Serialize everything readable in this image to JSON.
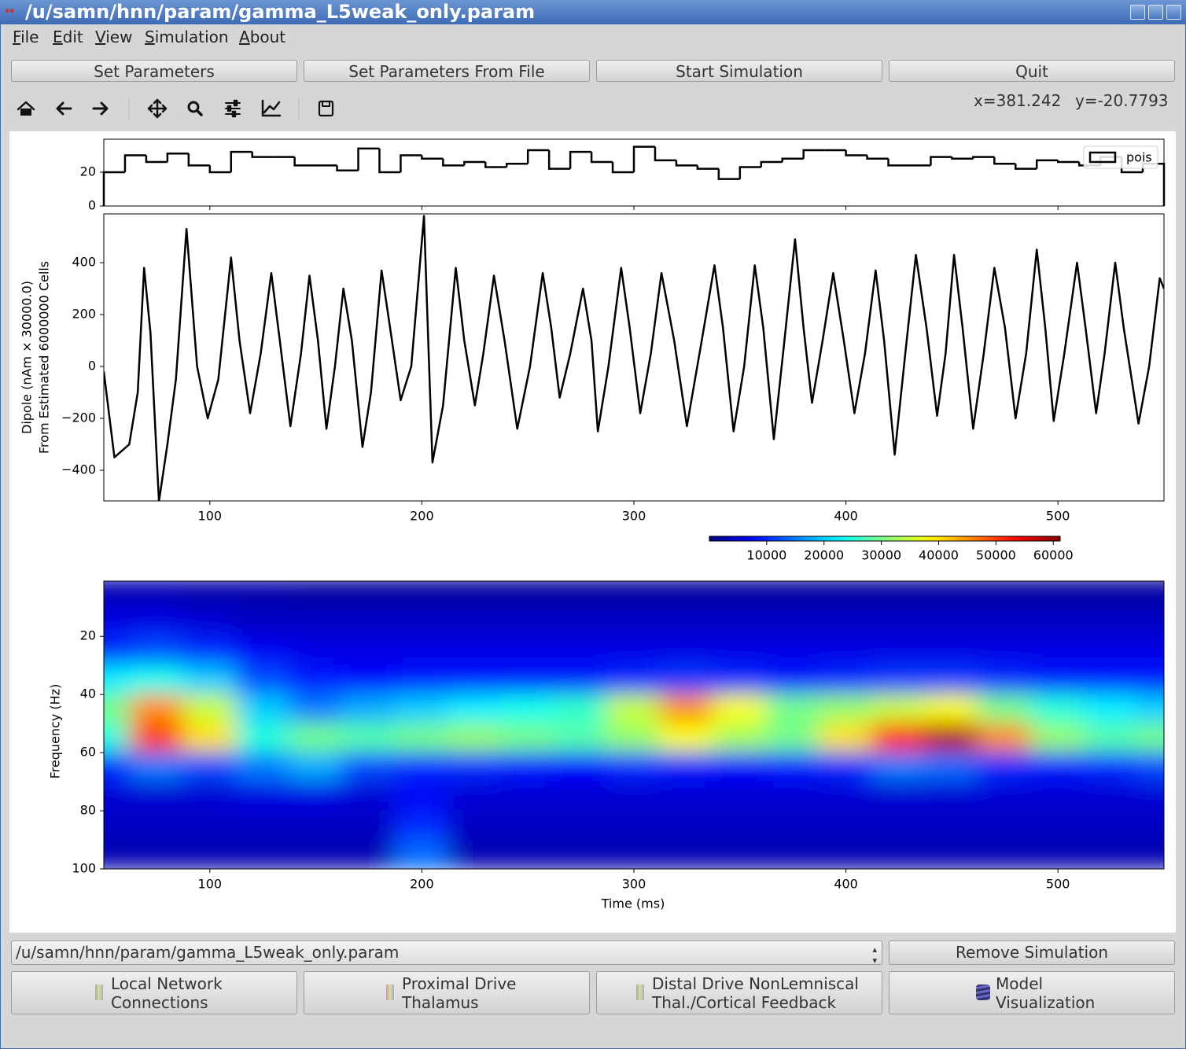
{
  "window": {
    "title": "/u/samn/hnn/param/gamma_L5weak_only.param"
  },
  "menu": [
    "File",
    "Edit",
    "View",
    "Simulation",
    "About"
  ],
  "buttons": [
    "Set Parameters",
    "Set Parameters From File",
    "Start Simulation",
    "Quit"
  ],
  "cursor": {
    "x": "x=381.242",
    "y": "y=-20.7793"
  },
  "simulation_select": "/u/samn/hnn/param/gamma_L5weak_only.param",
  "remove_button": "Remove Simulation",
  "panel_buttons": [
    {
      "lines": [
        "Local Network",
        "Connections"
      ]
    },
    {
      "lines": [
        "Proximal Drive",
        "Thalamus"
      ]
    },
    {
      "lines": [
        "Distal Drive NonLemniscal",
        "Thal./Cortical Feedback"
      ]
    },
    {
      "lines": [
        "Model",
        "Visualization"
      ]
    }
  ],
  "chart_data": [
    {
      "type": "histogram",
      "name": "pois",
      "color": "#000000",
      "legend": "upper right",
      "bins": [
        50,
        60,
        70,
        80,
        90,
        100,
        110,
        120,
        130,
        140,
        150,
        160,
        170,
        180,
        190,
        200,
        210,
        220,
        230,
        240,
        250,
        260,
        270,
        280,
        290,
        300,
        310,
        320,
        330,
        340,
        350,
        360,
        370,
        380,
        390,
        400,
        410,
        420,
        430,
        440,
        450,
        460,
        470,
        480,
        490,
        500,
        510,
        520,
        530,
        540,
        550
      ],
      "values": [
        20,
        30,
        26,
        31,
        24,
        20,
        32,
        29,
        29,
        24,
        24,
        21,
        34,
        20,
        30,
        28,
        24,
        26,
        23,
        25,
        33,
        22,
        32,
        26,
        20,
        35,
        27,
        24,
        22,
        16,
        23,
        26,
        28,
        33,
        33,
        30,
        28,
        24,
        24,
        29,
        28,
        29,
        25,
        22,
        27,
        26,
        24,
        29,
        20,
        25
      ],
      "xlim": [
        50,
        550
      ],
      "ylim": [
        0,
        39.5
      ],
      "yticks": [
        0,
        20
      ],
      "xticks": [
        100,
        200,
        300,
        400,
        500
      ]
    },
    {
      "type": "line",
      "color": "#000000",
      "ylabel": [
        "Dipole (nAm × 30000.0)",
        "From Estimated 6000000 Cells"
      ],
      "x": [
        50,
        55,
        62,
        66,
        69,
        72,
        76,
        80,
        84,
        89,
        94,
        99,
        104,
        110,
        114,
        119,
        124,
        129,
        133,
        138,
        143,
        147,
        151,
        155,
        159,
        163,
        167,
        172,
        176,
        181,
        185,
        190,
        195,
        201,
        203,
        205,
        210,
        216,
        220,
        225,
        229,
        234,
        239,
        245,
        251,
        257,
        261,
        265,
        270,
        276,
        280,
        283,
        288,
        294,
        298,
        303,
        308,
        313,
        319,
        325,
        332,
        338,
        342,
        347,
        352,
        357,
        361,
        366,
        371,
        376,
        380,
        384,
        389,
        394,
        399,
        404,
        409,
        414,
        418,
        423,
        428,
        433,
        438,
        443,
        447,
        451,
        455,
        460,
        465,
        470,
        475,
        480,
        485,
        490,
        494,
        498,
        503,
        509,
        513,
        518,
        522,
        527,
        531,
        538,
        543,
        548,
        550
      ],
      "values": [
        -20,
        -350,
        -300,
        -100,
        380,
        130,
        -520,
        -300,
        -50,
        530,
        0,
        -200,
        -50,
        420,
        100,
        -180,
        50,
        360,
        100,
        -230,
        50,
        350,
        100,
        -240,
        0,
        300,
        100,
        -310,
        -100,
        370,
        150,
        -130,
        0,
        580,
        100,
        -370,
        -150,
        380,
        100,
        -150,
        50,
        350,
        100,
        -240,
        0,
        360,
        150,
        -120,
        50,
        300,
        100,
        -250,
        0,
        380,
        150,
        -180,
        50,
        360,
        100,
        -230,
        100,
        390,
        150,
        -250,
        0,
        390,
        150,
        -280,
        100,
        490,
        150,
        -140,
        100,
        360,
        100,
        -180,
        50,
        370,
        100,
        -340,
        50,
        430,
        150,
        -190,
        50,
        430,
        150,
        -240,
        50,
        380,
        150,
        -200,
        50,
        450,
        150,
        -210,
        50,
        400,
        150,
        -180,
        50,
        400,
        150,
        -220,
        0,
        340,
        300
      ],
      "xlim": [
        50,
        550
      ],
      "ylim": [
        -518,
        588
      ],
      "xticks": [
        100,
        200,
        300,
        400,
        500
      ],
      "yticks": [
        {
          "value": -400,
          "label": "−400"
        },
        {
          "value": -200,
          "label": "−200"
        },
        0,
        200,
        400
      ]
    },
    {
      "type": "heatmap",
      "colormap": "jet",
      "y_inverted": true,
      "xlabel": "Time (ms)",
      "ylabel": "Frequency (Hz)",
      "x": [
        50,
        75,
        100,
        125,
        150,
        175,
        200,
        225,
        250,
        275,
        300,
        325,
        350,
        375,
        400,
        425,
        450,
        475,
        500,
        525,
        550
      ],
      "y": [
        5,
        15,
        25,
        35,
        45,
        55,
        65,
        75,
        85,
        95
      ],
      "values": [
        [
          3000,
          3000,
          2500,
          2500,
          2000,
          2000,
          2000,
          2000,
          2000,
          2000,
          2000,
          2000,
          2000,
          2000,
          2000,
          2000,
          2000,
          2000,
          2000,
          2000,
          2000
        ],
        [
          6000,
          6000,
          5000,
          4000,
          4000,
          4000,
          4000,
          4000,
          4000,
          4000,
          4000,
          4000,
          4000,
          4000,
          4000,
          4000,
          4000,
          4000,
          4000,
          4000,
          4000
        ],
        [
          10000,
          12000,
          10000,
          7000,
          6000,
          6000,
          6000,
          6000,
          6000,
          6000,
          6000,
          6000,
          6000,
          6000,
          6000,
          6000,
          6000,
          6000,
          6000,
          6000,
          6000
        ],
        [
          22000,
          24000,
          20000,
          12000,
          9000,
          8000,
          9000,
          9000,
          9000,
          9000,
          10000,
          11000,
          10000,
          9000,
          10000,
          11000,
          11000,
          10000,
          9000,
          9000,
          9000
        ],
        [
          30000,
          45000,
          35000,
          20000,
          15000,
          18000,
          20000,
          22000,
          24000,
          26000,
          35000,
          45000,
          38000,
          30000,
          32000,
          35000,
          38000,
          30000,
          25000,
          22000,
          20000
        ],
        [
          25000,
          50000,
          40000,
          25000,
          30000,
          28000,
          30000,
          32000,
          30000,
          28000,
          32000,
          38000,
          33000,
          30000,
          40000,
          52000,
          58000,
          45000,
          32000,
          28000,
          30000
        ],
        [
          10000,
          15000,
          12000,
          15000,
          18000,
          12000,
          10000,
          10000,
          9000,
          8000,
          10000,
          9000,
          8000,
          9000,
          10000,
          15000,
          14000,
          10000,
          9000,
          10000,
          12000
        ],
        [
          5000,
          5000,
          5000,
          6000,
          6000,
          5000,
          7000,
          5000,
          5000,
          5000,
          5000,
          5000,
          5000,
          5000,
          5000,
          5000,
          5000,
          5000,
          5000,
          5000,
          5000
        ],
        [
          4000,
          4000,
          4000,
          4000,
          4000,
          4000,
          10000,
          4000,
          4000,
          4000,
          4000,
          4000,
          4000,
          4000,
          4000,
          4000,
          4000,
          4000,
          4000,
          4000,
          4000
        ],
        [
          3000,
          3000,
          3000,
          3000,
          3000,
          3000,
          14000,
          3000,
          3000,
          3000,
          3000,
          3000,
          3000,
          3000,
          3000,
          3000,
          3000,
          3000,
          3000,
          3000,
          3000
        ]
      ],
      "xlim": [
        50,
        550
      ],
      "ylim": [
        1,
        100
      ],
      "xticks": [
        100,
        200,
        300,
        400,
        500
      ],
      "yticks": [
        20,
        40,
        60,
        80,
        100
      ],
      "clim": [
        0,
        61200
      ],
      "colorbar_ticks": [
        10000,
        20000,
        30000,
        40000,
        50000,
        60000
      ]
    }
  ]
}
